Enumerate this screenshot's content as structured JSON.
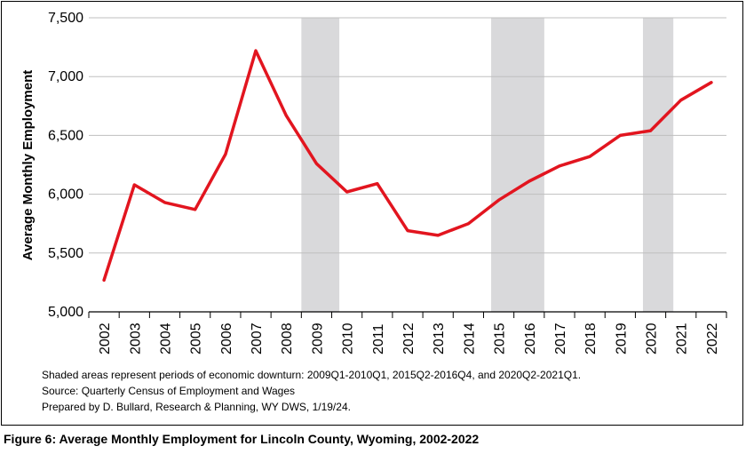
{
  "chart_data": {
    "type": "line",
    "title": "",
    "xlabel": "",
    "ylabel": "Average Monthly Employment",
    "categories": [
      "2002",
      "2003",
      "2004",
      "2005",
      "2006",
      "2007",
      "2008",
      "2009",
      "2010",
      "2011",
      "2012",
      "2013",
      "2014",
      "2015",
      "2016",
      "2017",
      "2018",
      "2019",
      "2020",
      "2021",
      "2022"
    ],
    "series": [
      {
        "values": [
          5270,
          6080,
          5930,
          5870,
          6340,
          7220,
          6670,
          6260,
          6020,
          6090,
          5690,
          5650,
          5750,
          5950,
          6110,
          6240,
          6320,
          6500,
          6540,
          6800,
          6950
        ]
      }
    ],
    "ylim": [
      5000,
      7500
    ],
    "yticks": [
      "5,000",
      "5,500",
      "6,000",
      "6,500",
      "7,000",
      "7,500"
    ],
    "grid": true,
    "line_color": "#e2151f",
    "shade_color": "#d9d9db",
    "shaded_periods": [
      {
        "from": "2009Q1",
        "to": "2010Q1"
      },
      {
        "from": "2015Q2",
        "to": "2016Q4"
      },
      {
        "from": "2020Q2",
        "to": "2021Q1"
      }
    ]
  },
  "notes": [
    "Shaded areas represent periods of economic downturn: 2009Q1-2010Q1, 2015Q2-2016Q4, and 2020Q2-2021Q1.",
    "Source: Quarterly Census of Employment and Wages",
    "Prepared by D. Bullard, Research & Planning, WY DWS, 1/19/24."
  ],
  "caption": "Figure 6: Average Monthly Employment for Lincoln County, Wyoming, 2002-2022"
}
